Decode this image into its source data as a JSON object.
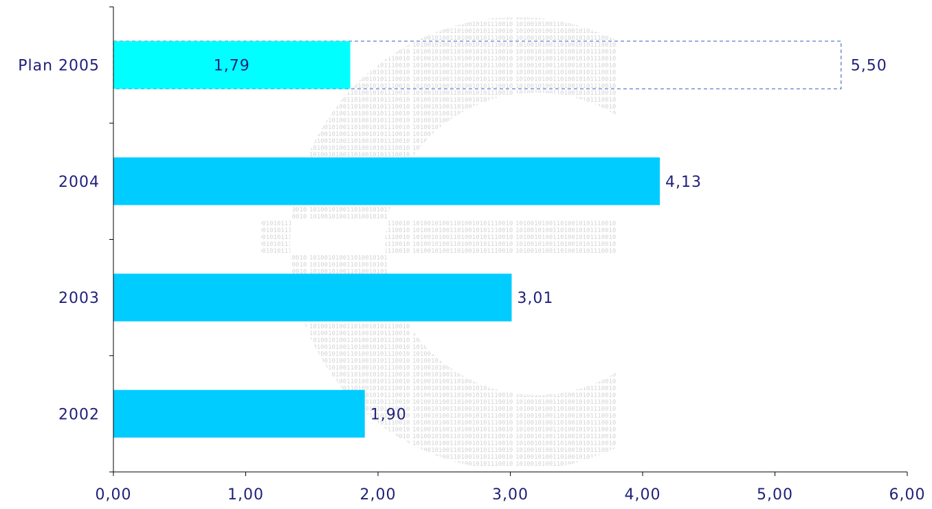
{
  "chart_data": {
    "type": "bar",
    "orientation": "horizontal",
    "categories": [
      "Plan 2005",
      "2004",
      "2003",
      "2002"
    ],
    "series": [
      {
        "values": [
          1.79,
          4.13,
          3.01,
          1.9
        ]
      }
    ],
    "plan_target": {
      "category": "Plan 2005",
      "value": 5.5,
      "label": "5,50"
    },
    "data_labels": [
      "1,79",
      "4,13",
      "3,01",
      "1,90"
    ],
    "x_ticks": [
      "0,00",
      "1,00",
      "2,00",
      "3,00",
      "4,00",
      "5,00",
      "6,00"
    ],
    "xlim": [
      0,
      6
    ],
    "title": "",
    "xlabel": "",
    "ylabel": "",
    "grid": false,
    "legend": "none",
    "background_image": "euro-symbol-binary-digits-watermark",
    "colors": {
      "bar": "#00ccff",
      "plan_bar": "#00ffff",
      "target_outline": "#4472c4",
      "text": "#1f1f7a",
      "axis": "#000000",
      "watermark": "#e2e2e2"
    }
  }
}
